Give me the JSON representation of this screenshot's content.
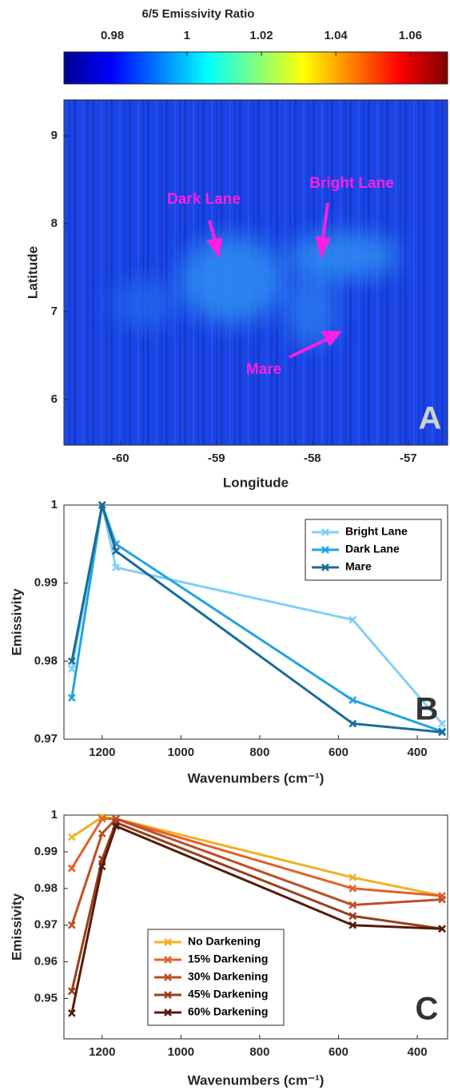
{
  "chart_data": [
    {
      "type": "heatmap",
      "colorbar_label": "6/5 Emissivity Ratio",
      "colormap": "jet",
      "clim": [
        0.967,
        1.07
      ],
      "cticks": [
        0.98,
        1,
        1.02,
        1.04,
        1.06
      ],
      "x_label": "Longitude",
      "y_label": "Latitude",
      "xlim": [
        -60.59,
        -56.59
      ],
      "xticks": [
        -60,
        -59,
        -58,
        -57
      ],
      "ylim": [
        5.48,
        9.41
      ],
      "yticks": [
        6,
        7,
        8,
        9
      ],
      "annotations": [
        "Dark Lane",
        "Bright Lane",
        "Mare"
      ],
      "panel_label": "A"
    },
    {
      "type": "line",
      "x_label": "Wavenumbers (cm⁻¹)",
      "y_label": "Emissivity",
      "x": [
        1277,
        1200,
        1165,
        564,
        337
      ],
      "xlim": [
        1297,
        323
      ],
      "xticks": [
        1200,
        1000,
        800,
        600,
        400
      ],
      "ylim": [
        0.97,
        1
      ],
      "yticks": [
        0.97,
        0.98,
        0.99,
        1
      ],
      "legend": "upper right",
      "panel_label": "B",
      "series": [
        {
          "name": "Bright Lane",
          "color": "#80d0f5",
          "values": [
            0.979,
            1.0,
            0.992,
            0.9853,
            0.972
          ]
        },
        {
          "name": "Dark Lane",
          "color": "#21a3e3",
          "values": [
            0.9753,
            1.0,
            0.995,
            0.975,
            0.971
          ]
        },
        {
          "name": "Mare",
          "color": "#186c98",
          "values": [
            0.98,
            1.0,
            0.9941,
            0.972,
            0.9709
          ]
        }
      ]
    },
    {
      "type": "line",
      "x_label": "Wavenumbers (cm⁻¹)",
      "y_label": "Emissivity",
      "x": [
        1277,
        1200,
        1165,
        564,
        337
      ],
      "xlim": [
        1297,
        323
      ],
      "xticks": [
        1200,
        1000,
        800,
        600,
        400
      ],
      "ylim": [
        0.939,
        1.0
      ],
      "yticks": [
        0.95,
        0.96,
        0.97,
        0.98,
        0.99,
        1
      ],
      "legend": "lower center",
      "panel_label": "C",
      "series": [
        {
          "name": "No Darkening",
          "color": "#efb127",
          "values": [
            0.994,
            0.9995,
            0.999,
            0.983,
            0.978
          ]
        },
        {
          "name": "15% Darkening",
          "color": "#e4602a",
          "values": [
            0.9855,
            0.999,
            0.999,
            0.98,
            0.978
          ]
        },
        {
          "name": "30% Darkening",
          "color": "#bf4e26",
          "values": [
            0.97,
            0.995,
            0.999,
            0.9755,
            0.977
          ]
        },
        {
          "name": "45% Darkening",
          "color": "#9a3d1c",
          "values": [
            0.952,
            0.988,
            0.998,
            0.9725,
            0.969
          ]
        },
        {
          "name": "60% Darkening",
          "color": "#561b0b",
          "values": [
            0.946,
            0.986,
            0.997,
            0.97,
            0.969
          ]
        }
      ]
    }
  ]
}
